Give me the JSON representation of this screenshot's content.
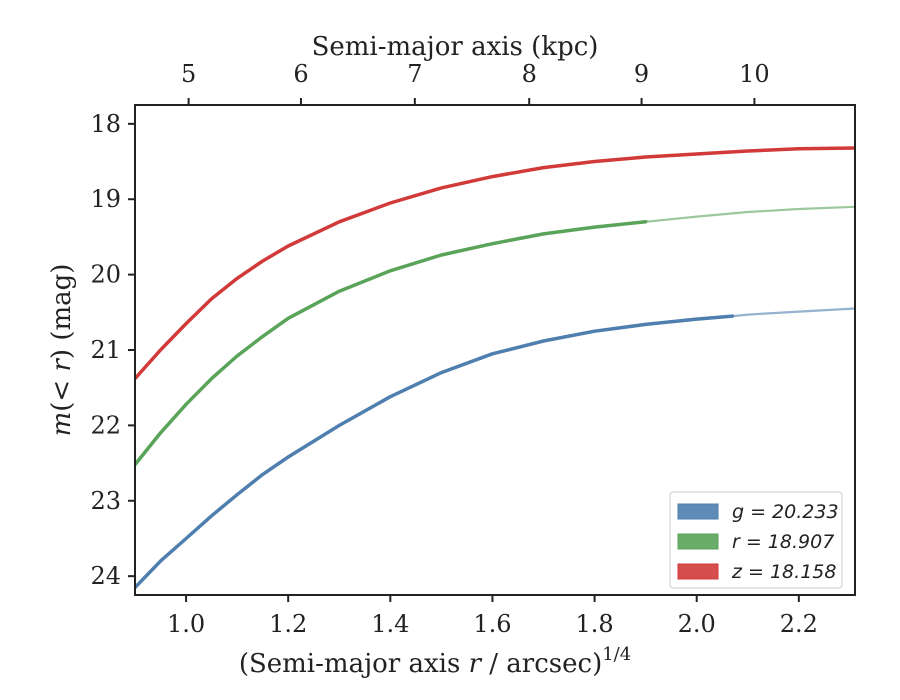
{
  "chart_data": {
    "type": "line",
    "xlabel_prefix": "(Semi-major axis ",
    "xlabel_var": "r",
    "xlabel_suffix": " / arcsec)",
    "xlabel_sup": "1/4",
    "top_xlabel": "Semi-major axis (kpc)",
    "ylabel_prefix": "m(",
    "ylabel_var": "< r",
    "ylabel_suffix": ") (mag)",
    "xlim": [
      0.9,
      2.31
    ],
    "ylim": [
      24.25,
      17.75
    ],
    "y_inverted": true,
    "x_ticks": [
      1.0,
      1.2,
      1.4,
      1.6,
      1.8,
      2.0,
      2.2
    ],
    "x_tick_labels": [
      "1.0",
      "1.2",
      "1.4",
      "1.6",
      "1.8",
      "2.0",
      "2.2"
    ],
    "y_ticks": [
      18,
      19,
      20,
      21,
      22,
      23,
      24
    ],
    "y_tick_labels": [
      "18",
      "19",
      "20",
      "21",
      "22",
      "23",
      "24"
    ],
    "top_ticks_kpc": [
      5,
      6,
      7,
      8,
      9,
      10
    ],
    "top_tick_labels": [
      "5",
      "6",
      "7",
      "8",
      "9",
      "10"
    ],
    "top_tick_positions_x": [
      1.005,
      1.225,
      1.448,
      1.672,
      1.892,
      2.113
    ],
    "legend_position": "lower-right",
    "series": [
      {
        "name": "g = 20.233",
        "color": "#4e7fae",
        "solid_end_x": 2.07,
        "x": [
          0.9,
          0.95,
          1.0,
          1.05,
          1.1,
          1.15,
          1.2,
          1.3,
          1.4,
          1.5,
          1.6,
          1.7,
          1.8,
          1.9,
          2.0,
          2.07,
          2.1,
          2.2,
          2.31
        ],
        "y": [
          24.15,
          23.8,
          23.5,
          23.2,
          22.92,
          22.65,
          22.42,
          22.0,
          21.62,
          21.3,
          21.05,
          20.88,
          20.75,
          20.66,
          20.59,
          20.55,
          20.53,
          20.49,
          20.45
        ]
      },
      {
        "name": "r = 18.907",
        "color": "#5aa45a",
        "solid_end_x": 1.9,
        "x": [
          0.9,
          0.95,
          1.0,
          1.05,
          1.1,
          1.15,
          1.2,
          1.3,
          1.4,
          1.5,
          1.6,
          1.7,
          1.8,
          1.9,
          2.0,
          2.1,
          2.2,
          2.31
        ],
        "y": [
          22.52,
          22.1,
          21.72,
          21.38,
          21.08,
          20.82,
          20.58,
          20.22,
          19.95,
          19.74,
          19.59,
          19.46,
          19.37,
          19.3,
          19.23,
          19.17,
          19.13,
          19.1
        ]
      },
      {
        "name": "z = 18.158",
        "color": "#d23a3a",
        "solid_end_x": 2.31,
        "x": [
          0.9,
          0.95,
          1.0,
          1.05,
          1.1,
          1.15,
          1.2,
          1.3,
          1.4,
          1.5,
          1.6,
          1.7,
          1.8,
          1.9,
          2.0,
          2.1,
          2.2,
          2.31
        ],
        "y": [
          21.38,
          21.0,
          20.65,
          20.32,
          20.05,
          19.82,
          19.62,
          19.3,
          19.05,
          18.85,
          18.7,
          18.58,
          18.5,
          18.44,
          18.4,
          18.36,
          18.33,
          18.32
        ]
      }
    ]
  }
}
